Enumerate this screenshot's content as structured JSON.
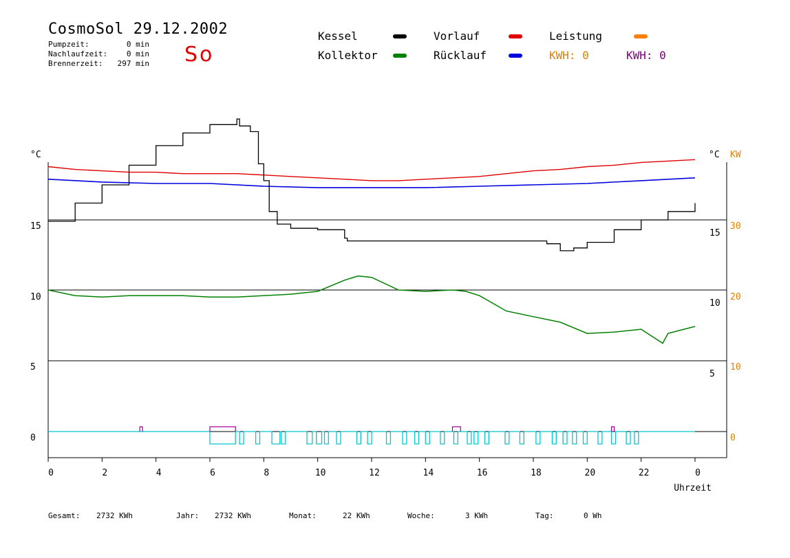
{
  "header": {
    "title": "CosmoSol 29.12.2002",
    "day": "So",
    "info": [
      {
        "label": "Pumpzeit:",
        "value": "0 min"
      },
      {
        "label": "Nachlaufzeit:",
        "value": "0 min"
      },
      {
        "label": "Brennerzeit:",
        "value": "297 min"
      }
    ]
  },
  "legend": {
    "items": [
      {
        "label": "Kessel",
        "color": "#000000"
      },
      {
        "label": "Vorlauf",
        "color": "#e00000"
      },
      {
        "label": "Leistung",
        "color": "#ff8000"
      },
      {
        "label": "Kollektor",
        "color": "#008000"
      },
      {
        "label": "Rücklauf",
        "color": "#0000e0"
      }
    ],
    "kwh": [
      {
        "text": "KWH: 0",
        "color": "#e08000"
      },
      {
        "text": "KWH: 0",
        "color": "#800080"
      }
    ]
  },
  "axes": {
    "left_unit": "°C",
    "right_unit": "°C",
    "right_unit2": "KW",
    "xlabel": "Uhrzeit"
  },
  "summary": {
    "items": [
      {
        "label": "Gesamt:",
        "value": "2732 KWh"
      },
      {
        "label": "Jahr:",
        "value": "2732 KWh"
      },
      {
        "label": "Monat:",
        "value": "22 KWh"
      },
      {
        "label": "Woche:",
        "value": "3 KWh"
      },
      {
        "label": "Tag:",
        "value": "0 Wh"
      }
    ]
  },
  "chart_data": [
    {
      "type": "line",
      "panel": "top",
      "yticks_left": [
        "15"
      ],
      "yticks_right": [
        "15"
      ],
      "yticks_right2": [
        "30"
      ],
      "series": [
        {
          "name": "Vorlauf",
          "color": "#e00000",
          "x": [
            0,
            1,
            2,
            3,
            4,
            5,
            6,
            7,
            8,
            9,
            10,
            11,
            12,
            13,
            14,
            15,
            16,
            17,
            18,
            19,
            20,
            21,
            22,
            24
          ],
          "y": [
            18.8,
            18.6,
            18.5,
            18.4,
            18.4,
            18.3,
            18.3,
            18.3,
            18.2,
            18.1,
            18.0,
            17.9,
            17.8,
            17.8,
            17.9,
            18.0,
            18.1,
            18.3,
            18.5,
            18.6,
            18.8,
            18.9,
            19.1,
            19.3
          ]
        },
        {
          "name": "Rücklauf",
          "color": "#0000e0",
          "x": [
            0,
            2,
            4,
            6,
            8,
            10,
            12,
            14,
            16,
            18,
            20,
            22,
            24
          ],
          "y": [
            17.9,
            17.7,
            17.6,
            17.6,
            17.4,
            17.3,
            17.3,
            17.3,
            17.4,
            17.5,
            17.6,
            17.8,
            18.0
          ]
        },
        {
          "name": "Kessel",
          "color": "#000000",
          "x": [
            0,
            1,
            2,
            3,
            4,
            5,
            6,
            7,
            7.1,
            7.5,
            7.8,
            8.0,
            8.2,
            8.5,
            9.0,
            10.0,
            11.0,
            11.1,
            12,
            14,
            16,
            18,
            18.5,
            19.0,
            19.5,
            20,
            21,
            22,
            23,
            24
          ],
          "y": [
            14.9,
            16.2,
            17.5,
            18.9,
            20.3,
            21.2,
            21.8,
            22.2,
            21.7,
            21.3,
            19.0,
            17.8,
            15.6,
            14.7,
            14.4,
            14.3,
            13.7,
            13.5,
            13.5,
            13.5,
            13.5,
            13.5,
            13.3,
            12.8,
            13.0,
            13.4,
            14.3,
            15.0,
            15.6,
            16.2
          ]
        }
      ]
    },
    {
      "type": "line",
      "panel": "middle",
      "yticks_left": [
        "10"
      ],
      "yticks_right": [
        "10"
      ],
      "yticks_right2": [
        "20"
      ],
      "series": [
        {
          "name": "Kollektor",
          "color": "#008000",
          "x": [
            0,
            1,
            2,
            3,
            4,
            5,
            6,
            7,
            8,
            9,
            10,
            11,
            11.5,
            12,
            13,
            14,
            15,
            15.5,
            16,
            17,
            18,
            19,
            20,
            21,
            22,
            22.8,
            23,
            24
          ],
          "y": [
            10.0,
            9.6,
            9.5,
            9.6,
            9.6,
            9.6,
            9.5,
            9.5,
            9.6,
            9.7,
            9.9,
            10.7,
            11.0,
            10.9,
            10.0,
            9.9,
            10.0,
            9.9,
            9.6,
            8.5,
            8.1,
            7.7,
            6.9,
            7.0,
            7.2,
            6.2,
            6.9,
            7.4
          ]
        }
      ]
    },
    {
      "type": "line",
      "panel": "bottom",
      "yticks_left": [
        "5",
        "0"
      ],
      "yticks_right": [
        "5"
      ],
      "yticks_right2": [
        "10",
        "0"
      ],
      "xticks": [
        "0",
        "2",
        "4",
        "6",
        "8",
        "10",
        "12",
        "14",
        "16",
        "18",
        "20",
        "22",
        "0"
      ],
      "xlabel": "Uhrzeit",
      "pulses": {
        "cyan": [
          [
            6.0,
            6.95
          ],
          [
            7.1,
            7.25
          ],
          [
            7.7,
            7.85
          ],
          [
            8.3,
            8.6
          ],
          [
            8.65,
            8.8
          ],
          [
            9.6,
            9.8
          ],
          [
            9.95,
            10.15
          ],
          [
            10.25,
            10.4
          ],
          [
            10.7,
            10.85
          ],
          [
            11.45,
            11.6
          ],
          [
            11.85,
            12.0
          ],
          [
            12.55,
            12.7
          ],
          [
            13.15,
            13.3
          ],
          [
            13.6,
            13.75
          ],
          [
            14.0,
            14.15
          ],
          [
            14.55,
            14.7
          ],
          [
            15.05,
            15.2
          ],
          [
            15.55,
            15.7
          ],
          [
            15.8,
            15.95
          ],
          [
            16.2,
            16.35
          ],
          [
            16.95,
            17.1
          ],
          [
            17.5,
            17.65
          ],
          [
            18.1,
            18.25
          ],
          [
            18.7,
            18.85
          ],
          [
            19.1,
            19.25
          ],
          [
            19.45,
            19.6
          ],
          [
            19.85,
            20.0
          ],
          [
            20.4,
            20.55
          ],
          [
            20.9,
            21.05
          ],
          [
            21.45,
            21.6
          ],
          [
            21.75,
            21.9
          ]
        ],
        "purple": [
          [
            3.4,
            3.5
          ],
          [
            6.0,
            6.95
          ],
          [
            15.0,
            15.3
          ],
          [
            20.9,
            21.0
          ]
        ]
      }
    }
  ]
}
